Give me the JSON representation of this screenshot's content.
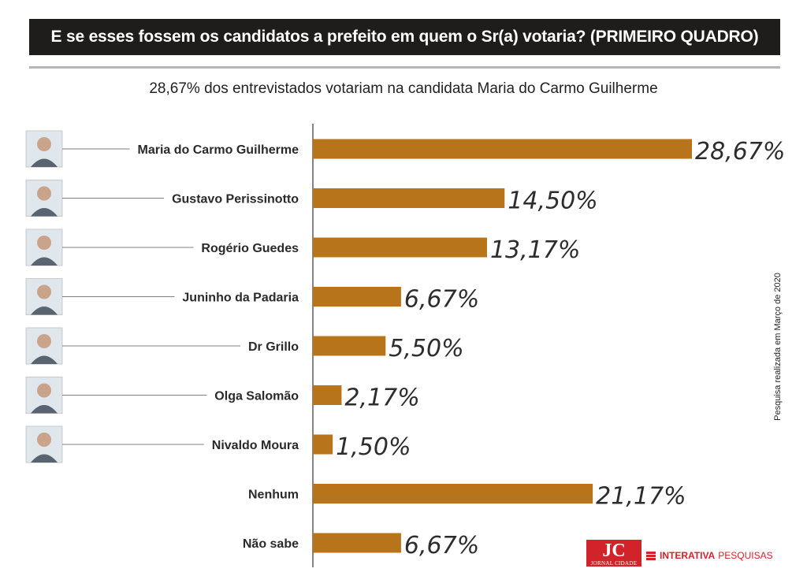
{
  "header": {
    "title": "E se esses fossem os candidatos a prefeito em quem o Sr(a) votaria? (PRIMEIRO QUADRO)"
  },
  "subtitle": "28,67% dos entrevistados votariam na candidata Maria do Carmo Guilherme",
  "side_note": "Pesquisa realizada em Março de 2020",
  "logos": {
    "jc_big": "JC",
    "jc_small": "JORNAL CIDADE",
    "interativa": "INTERATIVA",
    "pesquisas": "PESQUISAS"
  },
  "colors": {
    "bar": "#b8741a",
    "header_bg": "#1f1c1c",
    "brand_red": "#d3232a"
  },
  "chart_data": {
    "type": "bar",
    "orientation": "horizontal",
    "title": "E se esses fossem os candidatos a prefeito em quem o Sr(a) votaria? (PRIMEIRO QUADRO)",
    "categories": [
      "Maria do Carmo Guilherme",
      "Gustavo Perissinotto",
      "Rogério Guedes",
      "Juninho da Padaria",
      "Dr Grillo",
      "Olga Salomão",
      "Nivaldo Moura",
      "Nenhum",
      "Não sabe"
    ],
    "values": [
      28.67,
      14.5,
      13.17,
      6.67,
      5.5,
      2.17,
      1.5,
      21.17,
      6.67
    ],
    "value_labels": [
      "28,67%",
      "14,50%",
      "13,17%",
      "6,67%",
      "5,50%",
      "2,17%",
      "1,50%",
      "21,17%",
      "6,67%"
    ],
    "has_photo": [
      true,
      true,
      true,
      true,
      true,
      true,
      true,
      false,
      false
    ],
    "unit": "%",
    "grid": false
  }
}
